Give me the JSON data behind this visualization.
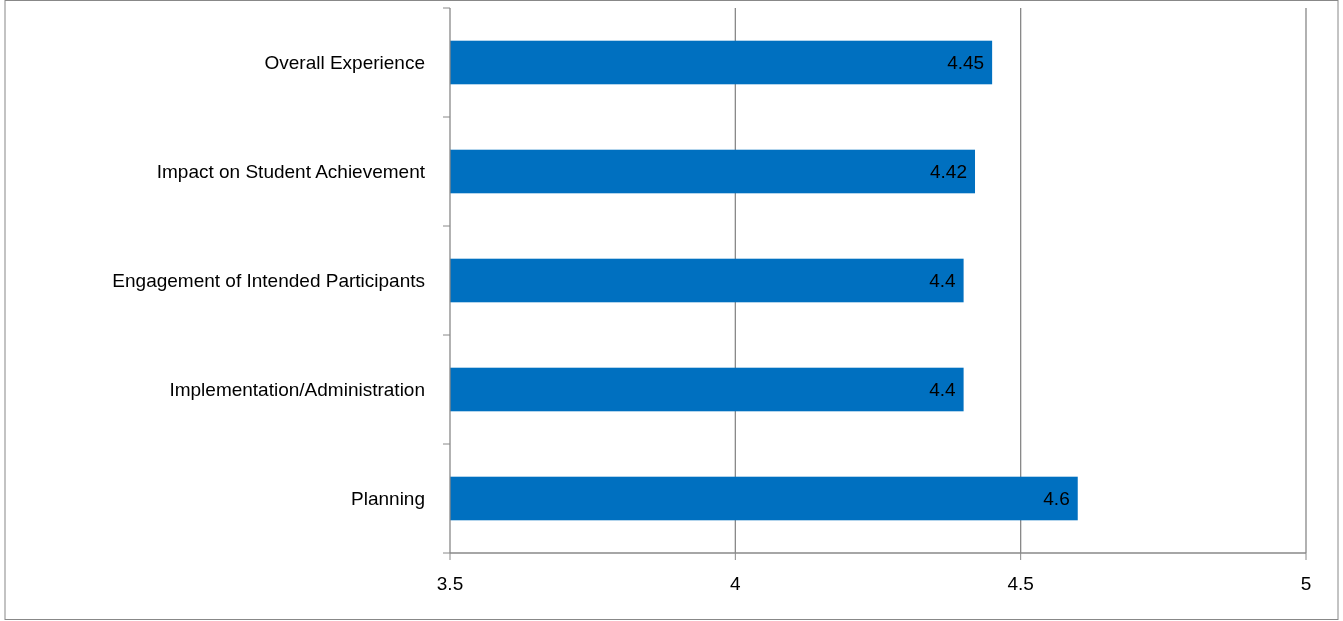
{
  "chart_data": {
    "type": "bar",
    "orientation": "horizontal",
    "categories": [
      "Overall Experience",
      "Impact on Student Achievement",
      "Engagement of Intended Participants",
      "Implementation/Administration",
      "Planning"
    ],
    "values": [
      4.45,
      4.42,
      4.4,
      4.4,
      4.6
    ],
    "color": "#0070c0",
    "xlim": [
      3.5,
      5
    ],
    "xticks": [
      3.5,
      4,
      4.5,
      5
    ],
    "grid": "x",
    "data_labels": true
  }
}
